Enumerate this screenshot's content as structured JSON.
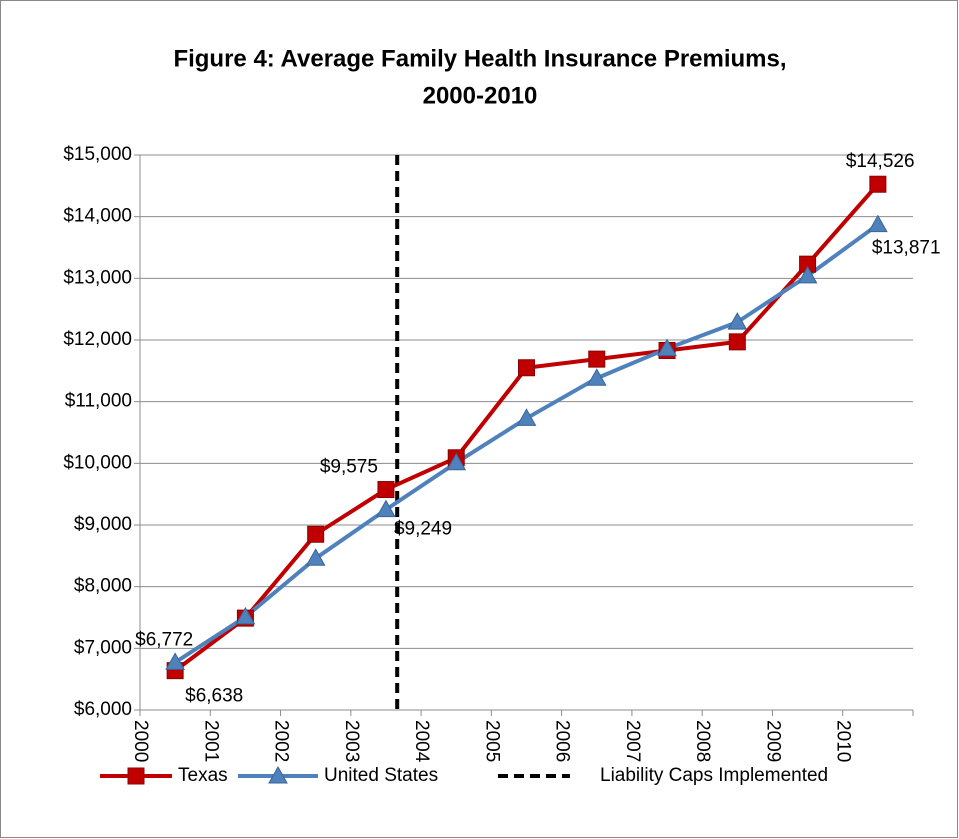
{
  "chart_data": {
    "type": "line",
    "title_lines": [
      "Figure 4: Average Family Health Insurance Premiums,",
      "2000-2010"
    ],
    "categories": [
      2000,
      2001,
      2002,
      2003,
      2004,
      2005,
      2006,
      2007,
      2008,
      2009,
      2010
    ],
    "series": [
      {
        "name": "Texas",
        "color": "#c00000",
        "marker": "square",
        "values": [
          6638,
          7490,
          8850,
          9575,
          10090,
          11550,
          11690,
          11830,
          11970,
          13230,
          14526
        ],
        "value_labels": [
          "$6,638",
          null,
          null,
          "$9,575",
          null,
          null,
          null,
          null,
          null,
          null,
          "$14,526"
        ]
      },
      {
        "name": "United States",
        "color": "#4f81bd",
        "marker": "triangle",
        "values": [
          6772,
          7510,
          8460,
          9249,
          10010,
          10730,
          11380,
          11860,
          12290,
          13040,
          13871
        ],
        "value_labels": [
          "$6,772",
          null,
          null,
          "$9,249",
          null,
          null,
          null,
          null,
          null,
          null,
          "$13,871"
        ]
      }
    ],
    "reference_line": {
      "name": "Liability Caps Implemented",
      "x": 2003.66,
      "color": "#000000"
    },
    "ylim": [
      6000,
      15000
    ],
    "yticks": [
      {
        "value": 6000,
        "label": "$6,000"
      },
      {
        "value": 7000,
        "label": "$7,000"
      },
      {
        "value": 8000,
        "label": "$8,000"
      },
      {
        "value": 9000,
        "label": "$9,000"
      },
      {
        "value": 10000,
        "label": "$10,000"
      },
      {
        "value": 11000,
        "label": "$11,000"
      },
      {
        "value": 12000,
        "label": "$12,000"
      },
      {
        "value": 13000,
        "label": "$13,000"
      },
      {
        "value": 14000,
        "label": "$14,000"
      },
      {
        "value": 15000,
        "label": "$15,000"
      }
    ],
    "grid": true,
    "legend": "bottom"
  }
}
